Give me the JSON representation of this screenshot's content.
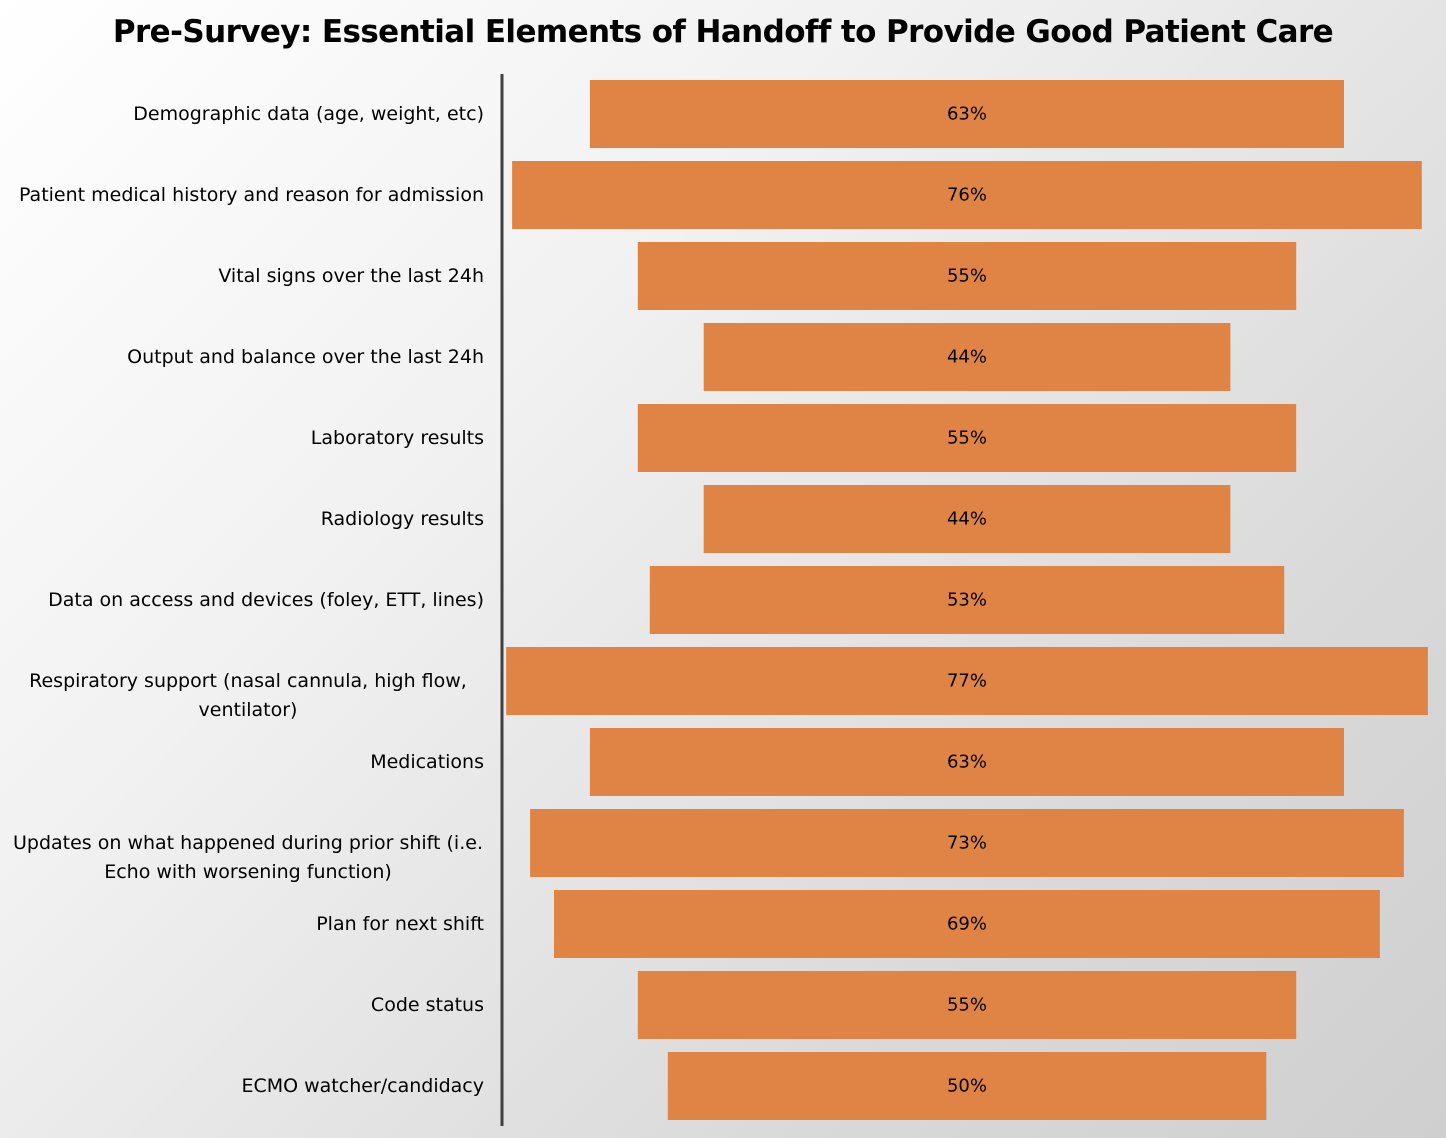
{
  "chart_data": {
    "type": "bar",
    "orientation": "horizontal",
    "layout": "centered-funnel",
    "title": "Pre-Survey: Essential Elements of Handoff to Provide Good Patient Care",
    "categories": [
      [
        "Demographic data (age, weight, etc)"
      ],
      [
        "Patient medical history and reason for admission"
      ],
      [
        "Vital signs over the last 24h"
      ],
      [
        "Output and balance over the last 24h"
      ],
      [
        "Laboratory results"
      ],
      [
        "Radiology results"
      ],
      [
        "Data on access and devices (foley, ETT, lines)"
      ],
      [
        "Respiratory support (nasal cannula, high flow,",
        "ventilator)"
      ],
      [
        "Medications"
      ],
      [
        "Updates on what happened during prior shift (i.e.",
        "Echo with worsening function)"
      ],
      [
        "Plan for next shift"
      ],
      [
        "Code status"
      ],
      [
        "ECMO watcher/candidacy"
      ]
    ],
    "values": [
      63,
      76,
      55,
      44,
      55,
      44,
      53,
      77,
      63,
      73,
      69,
      55,
      50
    ],
    "value_labels": [
      "63%",
      "76%",
      "55%",
      "44%",
      "55%",
      "44%",
      "53%",
      "77%",
      "63%",
      "73%",
      "69%",
      "55%",
      "50%"
    ],
    "unit": "%",
    "bar_color": "#e08446",
    "axis_color": "#404040",
    "grid": false,
    "legend": "none"
  }
}
